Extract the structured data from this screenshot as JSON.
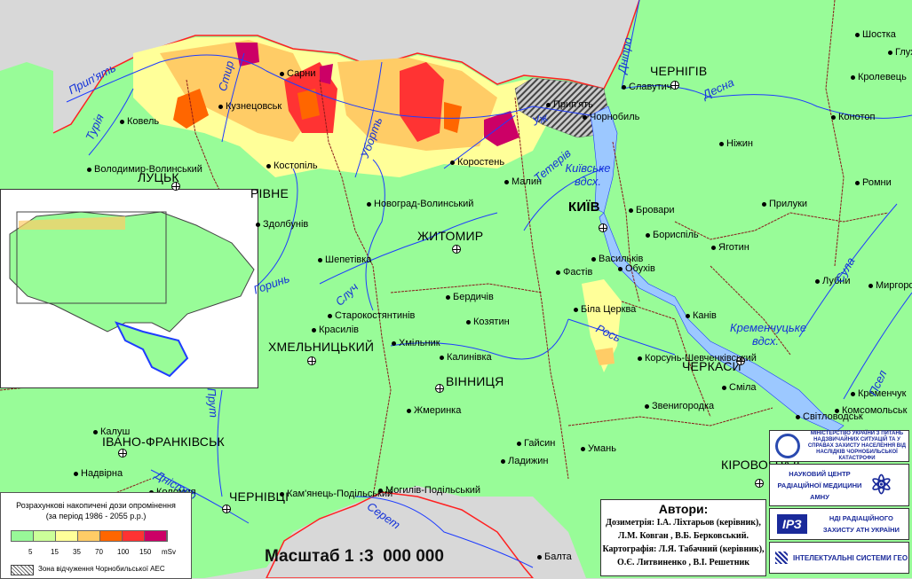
{
  "map": {
    "colors": {
      "land": "#98fc98",
      "outside": "#d8d8d8",
      "water": "#9cc8ff",
      "river": "#1e3cff",
      "oblast_border": "#8b1a1a",
      "state_border": "#ff2020"
    },
    "oblast_centers": [
      "ЧЕРНІГІВ",
      "КИЇВ",
      "ЖИТОМИР",
      "ЛУЦЬК",
      "РІВНЕ",
      "ХМЕЛЬНИЦЬКИЙ",
      "ВІННИЦЯ",
      "ЧЕРКАСИ",
      "КІРОВОГРАД",
      "ІВАНО-ФРАНКІВСЬК",
      "ЧЕРНІВЦІ"
    ],
    "cities": [
      "Ковель",
      "Володимир-Волинський",
      "Кузнецовськ",
      "Сарни",
      "Костопіль",
      "Коростень",
      "Малин",
      "Новоград-Волинський",
      "Прип'ять",
      "Чорнобиль",
      "Славутич",
      "Шостка",
      "Глухів",
      "Кролевець",
      "Конотоп",
      "Ніжин",
      "Прилуки",
      "Ромни",
      "Бровари",
      "Бориспіль",
      "Яготин",
      "Васильків",
      "Фастів",
      "Обухів",
      "Біла Церква",
      "Канів",
      "Корсунь-Шевченківський",
      "Сміла",
      "Звенигородка",
      "Кременчук",
      "Комсомольськ",
      "Світловодськ",
      "Лубни",
      "Миргород",
      "Здолбунів",
      "Шепетівка",
      "Старокостянтинів",
      "Красилів",
      "Хмільник",
      "Бердичів",
      "Козятин",
      "Калинівка",
      "Жмеринка",
      "Гайсин",
      "Ладижин",
      "Умань",
      "Могилів-Подільський",
      "Балта",
      "Калуш",
      "Надвірна",
      "Кам'янець-Подільський",
      "Коломия"
    ],
    "rivers": [
      "Прип'ять",
      "Турія",
      "Стир",
      "Уборть",
      "Уж",
      "Тетерів",
      "Десна",
      "Дніпро",
      "Случ",
      "Горинь",
      "Рось",
      "Сула",
      "Псел",
      "Прут",
      "Дністер",
      "Серет"
    ],
    "reservoirs": [
      "Київське вдсх.",
      "Кременчуцьке вдсх."
    ]
  },
  "legend": {
    "title_line1": "Розрахункові накопичені дози опромінення",
    "title_line2": "(за період 1986 - 2055 р.р.)",
    "classes": [
      "#98f898",
      "#ccff99",
      "#ffff99",
      "#ffcc66",
      "#ff6600",
      "#ff3333",
      "#cc0066"
    ],
    "ticks": [
      "5",
      "15",
      "35",
      "70",
      "100",
      "150",
      "mSv"
    ],
    "zone_label": "Зона відчуження Чорнобильської АЕС"
  },
  "scale": "Масштаб 1 :3  000 000",
  "authors": {
    "heading": "Автори:",
    "lines": [
      "Дозиметрія: І.А. Ліхтарьов (керівник),",
      "Л.М. Ковган ,  В.Б. Берковський.",
      "Картографія: Л.Я. Табачний (керівник),",
      "О.Є. Литвиненко , В.І. Решетник"
    ]
  },
  "logos": [
    {
      "text": "МІНІСТЕРСТВО УКРАЇНИ З ПИТАНЬ НАДЗВИЧАЙНИХ СИТУАЦІЙ ТА У СПРАВАХ ЗАХИСТУ НАСЕЛЕННЯ ВІД НАСЛІДКІВ ЧОРНОБИЛЬСЬКОЇ КАТАСТРОФИ",
      "icon": "emblem-icon"
    },
    {
      "text": "НАУКОВИЙ ЦЕНТР РАДІАЦІЙНОЇ МЕДИЦИНИ АМНУ",
      "icon": "atom-icon"
    },
    {
      "text": "НДІ РАДІАЦІЙНОГО ЗАХИСТУ АТН УКРАЇНИ",
      "badge": "ІРЗ"
    },
    {
      "text": "ІНТЕЛЕКТУАЛЬНІ СИСТЕМИ ГЕО",
      "icon": "geo-logo-icon"
    }
  ]
}
